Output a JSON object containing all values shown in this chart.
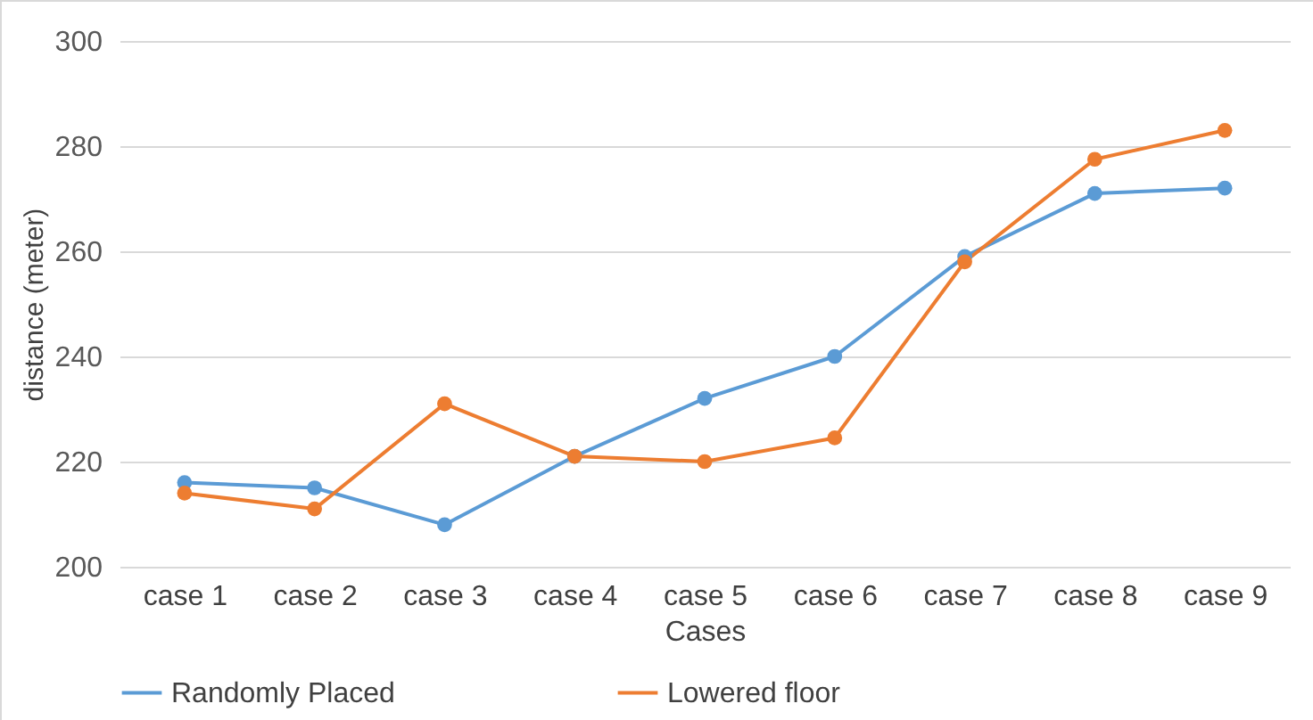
{
  "chart_data": {
    "type": "line",
    "xlabel": "Cases",
    "ylabel": "distance (meter)",
    "categories": [
      "case 1",
      "case 2",
      "case 3",
      "case 4",
      "case 5",
      "case 6",
      "case 7",
      "case 8",
      "case 9"
    ],
    "series": [
      {
        "name": "Randomly Placed",
        "color": "#5b9bd5",
        "values": [
          216,
          215,
          208,
          221,
          232,
          240,
          259,
          271,
          272
        ]
      },
      {
        "name": "Lowered floor",
        "color": "#ed7d31",
        "values": [
          214,
          211,
          231,
          221,
          220,
          224.5,
          258,
          277.5,
          283
        ]
      }
    ],
    "ylim": [
      200,
      300
    ],
    "yticks": [
      200,
      220,
      240,
      260,
      280,
      300
    ],
    "grid": "y",
    "legend": "bottom",
    "marker": "circle",
    "line_style": "solid"
  }
}
